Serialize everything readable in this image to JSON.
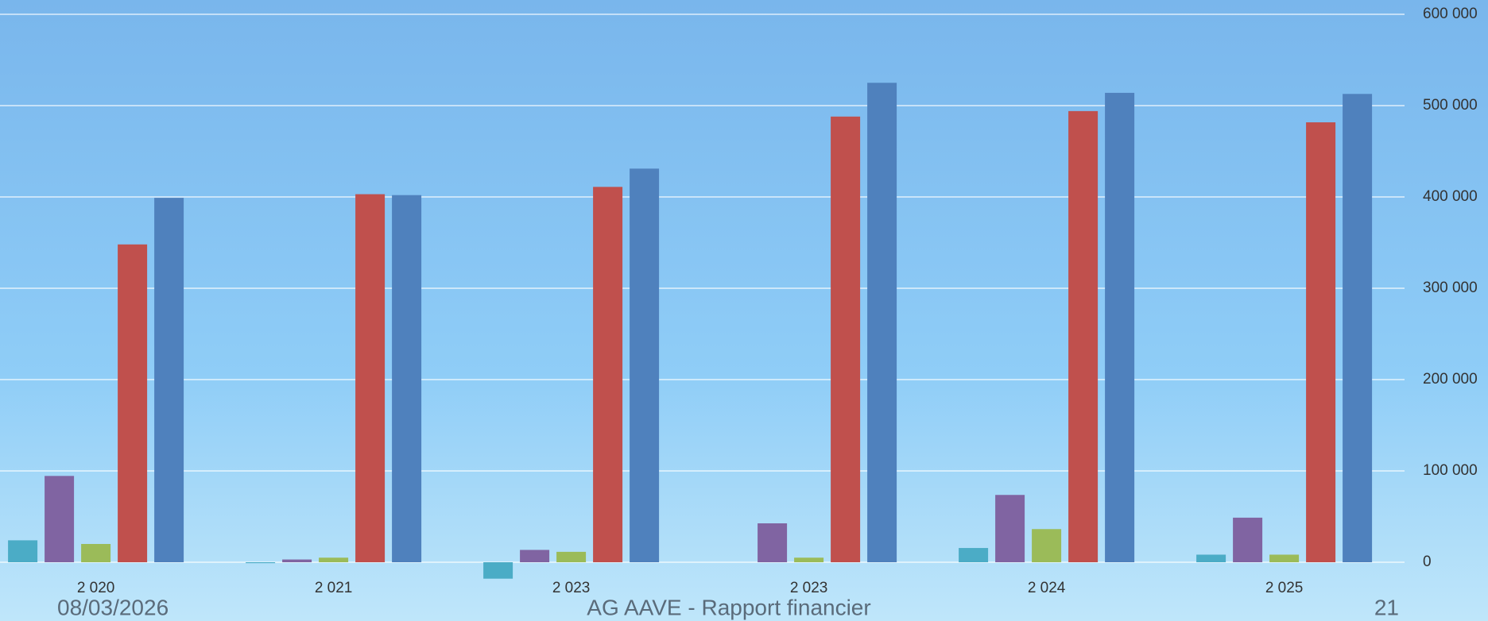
{
  "chart_data": {
    "type": "bar",
    "categories": [
      "2 020",
      "2 021",
      "2 023",
      "2 023",
      "2 024",
      "2 025"
    ],
    "series": [
      {
        "color": "#4bacc6",
        "values": [
          24000,
          -1000,
          -18000,
          0,
          15600,
          8300
        ]
      },
      {
        "color": "#8064a2",
        "values": [
          94500,
          3000,
          13500,
          42600,
          73700,
          48800
        ]
      },
      {
        "color": "#9bbb59",
        "values": [
          20000,
          5000,
          11400,
          5000,
          36300,
          8300
        ]
      },
      {
        "color": "#c0504d",
        "values": [
          348000,
          403000,
          411000,
          488000,
          494000,
          481700
        ]
      },
      {
        "color": "#4f81bd",
        "values": [
          399000,
          402000,
          431000,
          525000,
          514000,
          512800
        ]
      }
    ],
    "ylim": [
      0,
      600000
    ],
    "yticks": [
      0,
      {
        "value": 100000,
        "label": "100 000"
      },
      {
        "value": 200000,
        "label": "200 000"
      },
      {
        "value": 300000,
        "label": "300 000"
      },
      {
        "value": 400000,
        "label": "400 000"
      },
      {
        "value": 500000,
        "label": "500 000"
      },
      {
        "value": 600000,
        "label": "600 000"
      }
    ],
    "grid": true
  },
  "footer": {
    "date": "08/03/2026",
    "title": "AG AAVE - Rapport financier",
    "page": "21"
  }
}
